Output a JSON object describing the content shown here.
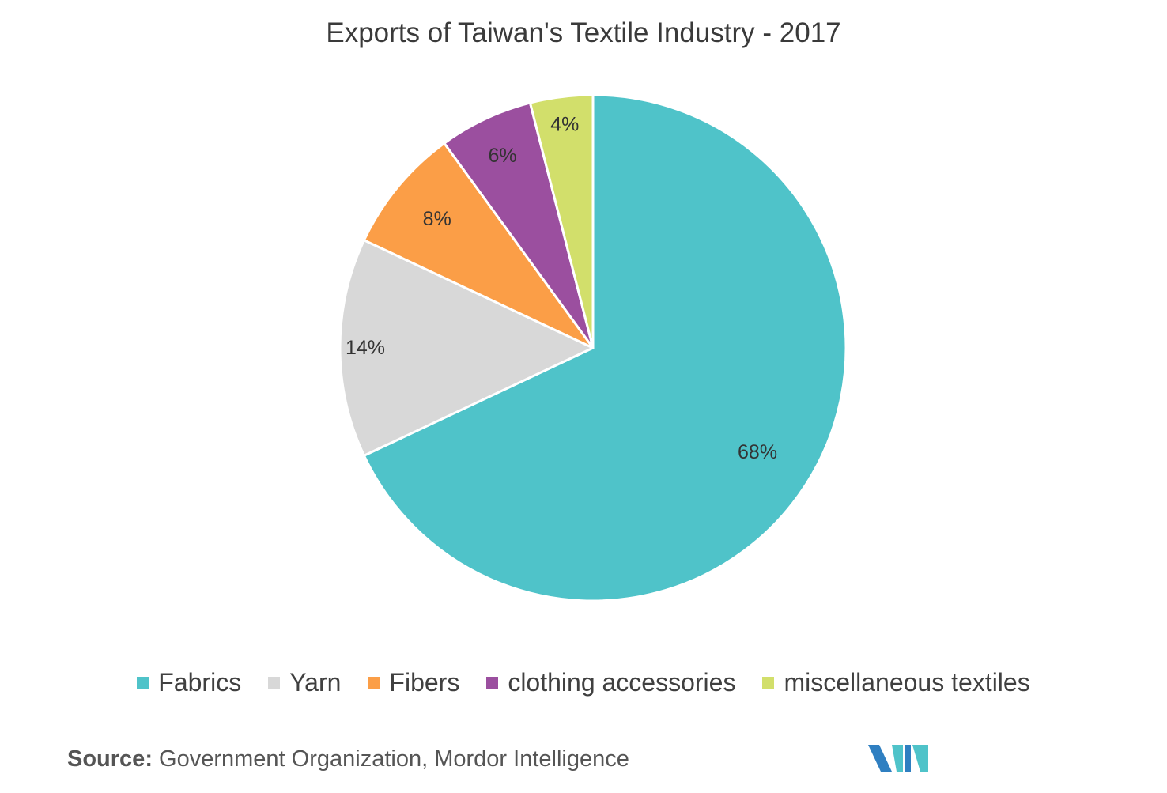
{
  "chart_data": {
    "type": "pie",
    "title": "Exports of Taiwan's Textile Industry - 2017",
    "start_angle": "12 o'clock",
    "direction": "clockwise",
    "slices": [
      {
        "label": "Fabrics",
        "value": 68,
        "display": "68%",
        "color": "#4fc3c9"
      },
      {
        "label": "Yarn",
        "value": 14,
        "display": "14%",
        "color": "#d8d8d8"
      },
      {
        "label": "Fibers",
        "value": 8,
        "display": "8%",
        "color": "#fb9e47"
      },
      {
        "label": "clothing accessories",
        "value": 6,
        "display": "6%",
        "color": "#9b4f9f"
      },
      {
        "label": "miscellaneous textiles",
        "value": 4,
        "display": "4%",
        "color": "#d2df6b"
      }
    ],
    "legend_position": "bottom"
  },
  "source": {
    "label": "Source:",
    "text": "Government Organization, Mordor Intelligence"
  },
  "logo": {
    "icon": "mordor-intelligence-logo",
    "colors": [
      "#2f7fc1",
      "#4fc3c9"
    ]
  }
}
